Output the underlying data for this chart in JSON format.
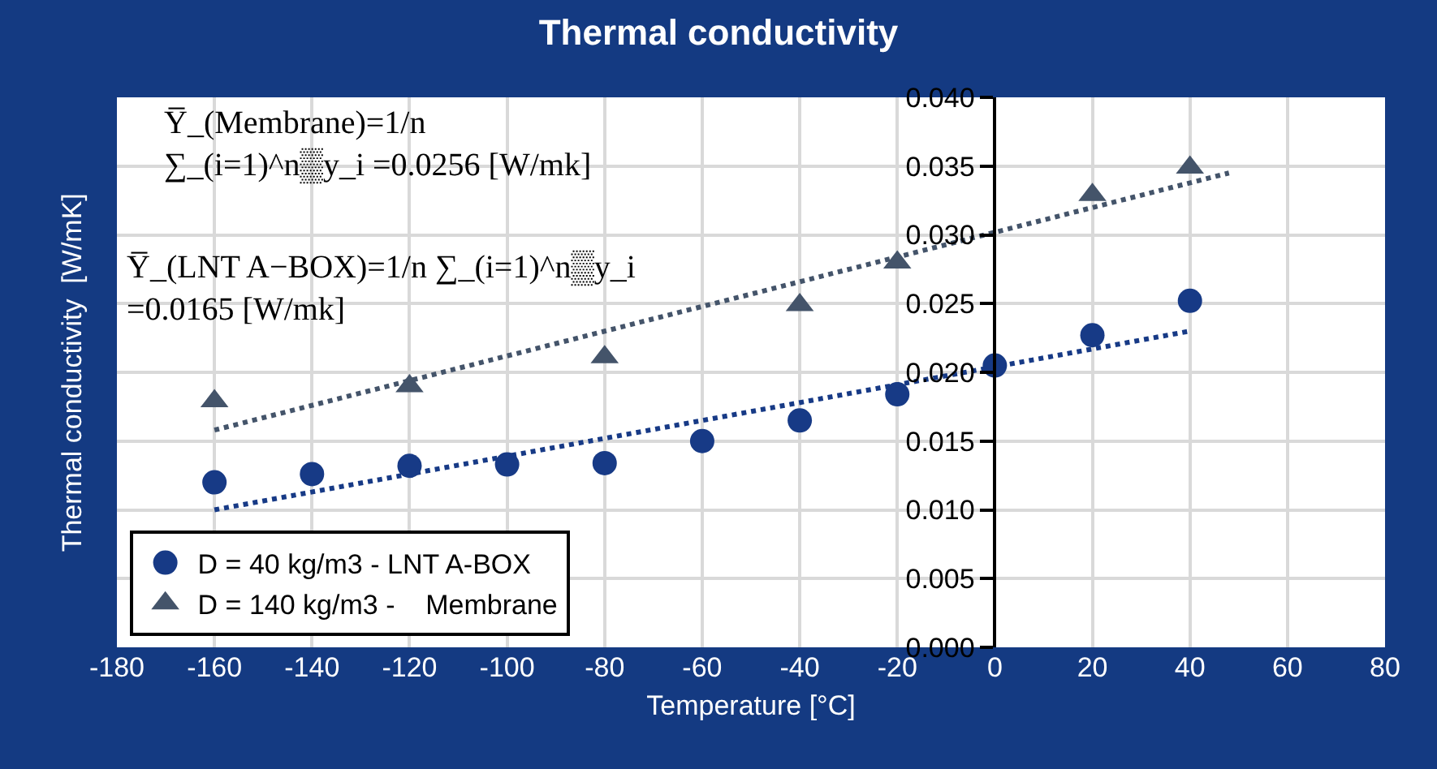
{
  "chart_data": {
    "type": "scatter",
    "title": "Thermal conductivity",
    "xlabel": "Temperature [°C]",
    "ylabel": "Thermal conductivity  [W/mK]",
    "xlim": [
      -180,
      80
    ],
    "xticks": [
      -180,
      -160,
      -140,
      -120,
      -100,
      -80,
      -60,
      -40,
      -20,
      0,
      20,
      40,
      60,
      80
    ],
    "ylim": [
      0,
      0.04
    ],
    "yticks": [
      {
        "value": 0,
        "label": "0.000"
      },
      {
        "value": 0.005,
        "label": "0.005"
      },
      {
        "value": 0.01,
        "label": "0.010"
      },
      {
        "value": 0.015,
        "label": "0.015"
      },
      {
        "value": 0.02,
        "label": "0.020"
      },
      {
        "value": 0.025,
        "label": "0.025"
      },
      {
        "value": 0.03,
        "label": "0.030"
      },
      {
        "value": 0.035,
        "label": "0.035"
      },
      {
        "value": 0.04,
        "label": "0.040"
      }
    ],
    "grid": true,
    "legend": "bottom left",
    "annotations": [
      "Y̅_(Membrane)=1/n\n∑_(i=1)^n▒y_i =0.0256 [W/mk]",
      "Y̅_(LNT A−BOX)=1/n ∑_(i=1)^n▒y_i\n=0.0165 [W/mk]"
    ],
    "series": [
      {
        "name": "D = 40 kg/m3 - LNT A-BOX",
        "marker": "circle",
        "color": "#173a86",
        "x": [
          -160,
          -140,
          -120,
          -100,
          -80,
          -60,
          -40,
          -20,
          0,
          20,
          40
        ],
        "values": [
          0.012,
          0.0126,
          0.0132,
          0.0133,
          0.0134,
          0.015,
          0.0165,
          0.0184,
          0.0205,
          0.0227,
          0.0252
        ]
      },
      {
        "name": "D = 140 kg/m3 -    Membrane",
        "marker": "triangle",
        "color": "#44546a",
        "x": [
          -160,
          -120,
          -80,
          -40,
          -20,
          20,
          40
        ],
        "values": [
          0.0179,
          0.019,
          0.0211,
          0.0249,
          0.028,
          0.0329,
          0.0349
        ]
      },
      {
        "type": "line",
        "line_style": "dotted",
        "marker": "none",
        "color": "#173a86",
        "x": [
          -160,
          40
        ],
        "values": [
          0.01,
          0.023
        ]
      },
      {
        "type": "line",
        "line_style": "dotted",
        "marker": "none",
        "color": "#44546a",
        "x": [
          -160,
          48
        ],
        "values": [
          0.0158,
          0.0345
        ]
      }
    ]
  }
}
